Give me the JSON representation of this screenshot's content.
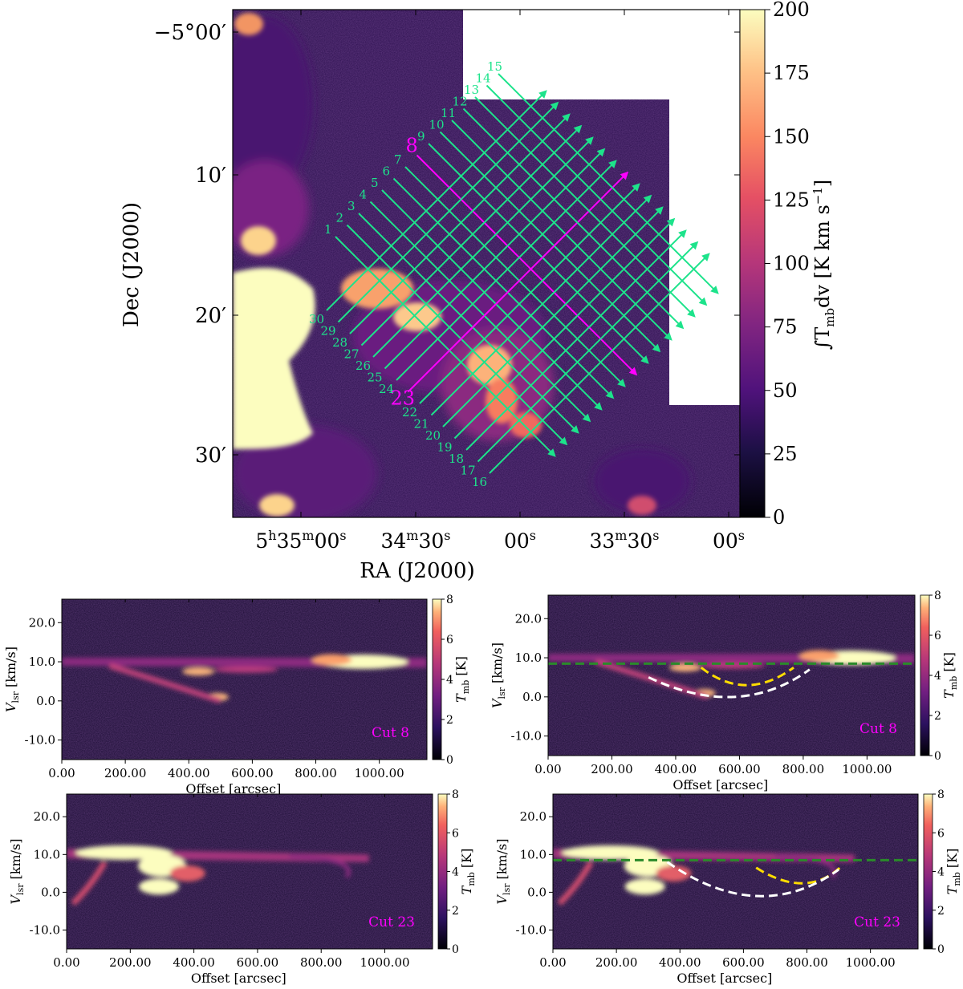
{
  "chart_data": [
    {
      "id": "map",
      "type": "heatmap",
      "title": "",
      "xlabel": "RA (J2000)",
      "ylabel": "Dec (J2000)",
      "colorbar_label": "∫T<sub>mb</sub>dv [K km s<sup>−1</sup>]",
      "colorbar_label_parts": {
        "lead": "∫T",
        "sub": "mb",
        "mid": "dv [K km s",
        "sup": "−1",
        "tail": "]"
      },
      "colorbar_range": [
        0,
        200
      ],
      "colorbar_ticks": [
        "0",
        "25",
        "50",
        "75",
        "100",
        "125",
        "150",
        "175",
        "200"
      ],
      "colormap": "magma",
      "x_ticks": [
        {
          "label_parts": [
            "5",
            "h",
            "35",
            "m",
            "00",
            "s"
          ]
        },
        {
          "label_parts": [
            "",
            "",
            "34",
            "m",
            "30",
            "s"
          ]
        },
        {
          "label_parts": [
            "",
            "",
            "",
            "",
            "00",
            "s"
          ]
        },
        {
          "label_parts": [
            "",
            "",
            "33",
            "m",
            "30",
            "s"
          ]
        },
        {
          "label_parts": [
            "",
            "",
            "",
            "",
            "00",
            "s"
          ]
        }
      ],
      "y_ticks": [
        "−5°00′",
        "10′",
        "20′",
        "30′"
      ],
      "cut_numbers": [
        "1",
        "2",
        "3",
        "4",
        "5",
        "6",
        "7",
        "8",
        "9",
        "10",
        "11",
        "12",
        "13",
        "14",
        "15",
        "16",
        "17",
        "18",
        "19",
        "20",
        "21",
        "22",
        "23",
        "24",
        "25",
        "26",
        "27",
        "28",
        "29",
        "30"
      ],
      "highlighted_cuts": [
        "8",
        "23"
      ],
      "colors": {
        "cut_line": "#1de38b",
        "highlight": "#ff00ff"
      }
    },
    {
      "id": "pv1",
      "type": "heatmap",
      "xlabel": "Offset [arcsec]",
      "ylabel_parts": {
        "lead": "V",
        "sub": "lsr",
        "tail": " [km/s]"
      },
      "colorbar_parts": {
        "lead": "T",
        "sub": "mb",
        "tail": " [K]"
      },
      "x_ticks": [
        "0.00",
        "200.00",
        "400.00",
        "600.00",
        "800.00",
        "1000.00"
      ],
      "y_ticks": [
        "20.0",
        "10.0",
        "0.0",
        "-10.0"
      ],
      "colorbar_ticks": [
        "0",
        "2",
        "4",
        "6",
        "8"
      ],
      "annotation": "Cut 8"
    },
    {
      "id": "pv2",
      "type": "heatmap",
      "xlabel": "Offset [arcsec]",
      "ylabel_parts": {
        "lead": "V",
        "sub": "lsr",
        "tail": " [km/s]"
      },
      "colorbar_parts": {
        "lead": "T",
        "sub": "mb",
        "tail": " [K]"
      },
      "x_ticks": [
        "0.00",
        "200.00",
        "400.00",
        "600.00",
        "800.00",
        "1000.00"
      ],
      "y_ticks": [
        "20.0",
        "10.0",
        "0.0",
        "-10.0"
      ],
      "colorbar_ticks": [
        "0",
        "2",
        "4",
        "6",
        "8"
      ],
      "annotation": "Cut 8",
      "overlays": {
        "green_line_v": 8.5,
        "yellow_arc": true,
        "white_arc": true
      }
    },
    {
      "id": "pv3",
      "type": "heatmap",
      "xlabel": "Offset [arcsec]",
      "ylabel_parts": {
        "lead": "V",
        "sub": "lsr",
        "tail": " [km/s]"
      },
      "colorbar_parts": {
        "lead": "T",
        "sub": "mb",
        "tail": " [K]"
      },
      "x_ticks": [
        "0.00",
        "200.00",
        "400.00",
        "600.00",
        "800.00",
        "1000.00"
      ],
      "y_ticks": [
        "20.0",
        "10.0",
        "0.0",
        "-10.0"
      ],
      "colorbar_ticks": [
        "0",
        "2",
        "4",
        "6",
        "8"
      ],
      "annotation": "Cut 23"
    },
    {
      "id": "pv4",
      "type": "heatmap",
      "xlabel": "Offset [arcsec]",
      "ylabel_parts": {
        "lead": "V",
        "sub": "lsr",
        "tail": " [km/s]"
      },
      "colorbar_parts": {
        "lead": "T",
        "sub": "mb",
        "tail": " [K]"
      },
      "x_ticks": [
        "0.00",
        "200.00",
        "400.00",
        "600.00",
        "800.00",
        "1000.00"
      ],
      "y_ticks": [
        "20.0",
        "10.0",
        "0.0",
        "-10.0"
      ],
      "colorbar_ticks": [
        "0",
        "2",
        "4",
        "6",
        "8"
      ],
      "annotation": "Cut 23",
      "overlays": {
        "green_line_v": 8.5,
        "yellow_arc": true,
        "white_arc": true
      }
    }
  ]
}
